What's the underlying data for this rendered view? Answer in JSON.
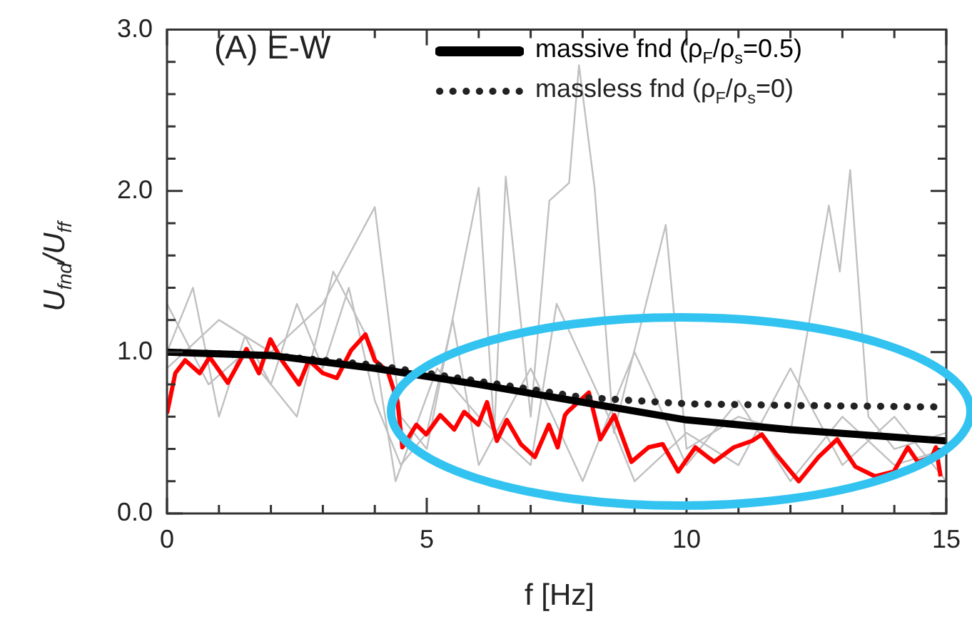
{
  "chart_data": {
    "type": "line",
    "xlabel": "f  [Hz]",
    "ylabel": "U$_{fnd}$/U$_{ff}$",
    "annotations": [
      "(A) E-W"
    ],
    "xlim": [
      0,
      15
    ],
    "xticks": [
      0,
      {
        "value": 1,
        "label": null
      },
      {
        "value": 2,
        "label": null
      },
      {
        "value": 3,
        "label": null
      },
      {
        "value": 4,
        "label": null
      },
      5,
      {
        "value": 6,
        "label": null
      },
      {
        "value": 7,
        "label": null
      },
      {
        "value": 8,
        "label": null
      },
      {
        "value": 9,
        "label": null
      },
      10,
      {
        "value": 11,
        "label": null
      },
      {
        "value": 12,
        "label": null
      },
      {
        "value": 13,
        "label": null
      },
      {
        "value": 14,
        "label": null
      },
      15
    ],
    "ylim": [
      0,
      3
    ],
    "yticks": [
      {
        "value": 0,
        "label": "0.0"
      },
      {
        "value": 0.2,
        "label": null
      },
      {
        "value": 0.4,
        "label": null
      },
      {
        "value": 0.6,
        "label": null
      },
      {
        "value": 0.8,
        "label": null
      },
      {
        "value": 1,
        "label": "1.0"
      },
      {
        "value": 1.2,
        "label": null
      },
      {
        "value": 1.4,
        "label": null
      },
      {
        "value": 1.6,
        "label": null
      },
      {
        "value": 1.8,
        "label": null
      },
      {
        "value": 2,
        "label": "2.0"
      },
      {
        "value": 2.2,
        "label": null
      },
      {
        "value": 2.4,
        "label": null
      },
      {
        "value": 2.6,
        "label": null
      },
      {
        "value": 2.8,
        "label": null
      },
      {
        "value": 3,
        "label": "3.0"
      }
    ],
    "legend": "top right",
    "marker": "none",
    "line_style": "solid",
    "series": [
      {
        "color": "#c0c0c0",
        "x": [
          0,
          1,
          2,
          3,
          4,
          4.5,
          5,
          6,
          6.3,
          6.52,
          7,
          7.36,
          7.74,
          7.93,
          8.23,
          8.6,
          9.6,
          10,
          11,
          12,
          12.74,
          12.95,
          13.15,
          13.5,
          14,
          15
        ],
        "values": [
          0.9,
          1.2,
          1.0,
          1.3,
          1.9,
          0.6,
          0.4,
          2.02,
          0.5,
          2.09,
          0.6,
          1.94,
          2.05,
          2.78,
          2.02,
          0.5,
          1.79,
          0.4,
          0.6,
          0.5,
          1.91,
          1.5,
          2.13,
          0.6,
          0.4,
          0.5
        ]
      },
      {
        "color": "#c0c0c0",
        "x": [
          0,
          0.5,
          1,
          1.5,
          2,
          2.5,
          3,
          3.5,
          4,
          4.5,
          5,
          5.5,
          6,
          7,
          8,
          9,
          10,
          11,
          12,
          13,
          14,
          15
        ],
        "values": [
          1.0,
          1.4,
          0.6,
          1.1,
          0.8,
          1.3,
          0.9,
          1.4,
          0.7,
          0.3,
          0.5,
          1.2,
          0.3,
          0.9,
          0.2,
          1.0,
          0.3,
          0.7,
          0.2,
          0.6,
          0.3,
          0.4
        ]
      },
      {
        "color": "#c0c0c0",
        "x": [
          0,
          0.8,
          1.5,
          2.5,
          3.2,
          4,
          4.4,
          5.2,
          6,
          7,
          7.5,
          8.5,
          9,
          10,
          11,
          12,
          13,
          14,
          15
        ],
        "values": [
          1.3,
          0.8,
          1.0,
          0.6,
          1.5,
          1.0,
          0.2,
          0.9,
          0.6,
          0.3,
          1.3,
          0.6,
          0.2,
          0.5,
          0.3,
          0.9,
          0.3,
          0.6,
          0.2
        ]
      },
      {
        "color": "#ff0000",
        "x": [
          0,
          0.16,
          0.35,
          0.63,
          0.82,
          1.17,
          1.53,
          1.77,
          1.99,
          2.21,
          2.54,
          2.73,
          3.0,
          3.27,
          3.54,
          3.82,
          4.0,
          4.25,
          4.44,
          4.53,
          4.8,
          4.99,
          5.26,
          5.53,
          5.72,
          5.99,
          6.16,
          6.35,
          6.54,
          6.81,
          7.08,
          7.35,
          7.52,
          7.66,
          7.71,
          8.12,
          8.34,
          8.61,
          8.94,
          9.27,
          9.54,
          9.84,
          10.17,
          10.53,
          10.91,
          11.26,
          11.45,
          11.72,
          12.16,
          12.54,
          12.9,
          13.25,
          13.63,
          13.99,
          14.26,
          14.45,
          14.72,
          14.8,
          14.89
        ],
        "values": [
          0.62,
          0.87,
          0.95,
          0.87,
          0.97,
          0.81,
          1.02,
          0.87,
          1.08,
          0.95,
          0.8,
          0.95,
          0.87,
          0.84,
          1.01,
          1.11,
          0.95,
          0.88,
          0.69,
          0.41,
          0.55,
          0.49,
          0.61,
          0.52,
          0.63,
          0.55,
          0.69,
          0.45,
          0.58,
          0.43,
          0.35,
          0.55,
          0.41,
          0.61,
          0.63,
          0.75,
          0.46,
          0.61,
          0.32,
          0.41,
          0.43,
          0.26,
          0.41,
          0.32,
          0.41,
          0.45,
          0.49,
          0.37,
          0.2,
          0.35,
          0.46,
          0.29,
          0.23,
          0.26,
          0.41,
          0.32,
          0.35,
          0.41,
          0.23
        ]
      },
      {
        "name": "massless fnd (ρ$_{F}$/ρ$_{s}$=0)",
        "color": "#222222",
        "line_style": "dotted",
        "x": [
          0,
          2,
          4,
          6,
          8,
          10,
          12,
          15
        ],
        "values": [
          1.0,
          0.98,
          0.92,
          0.82,
          0.72,
          0.68,
          0.67,
          0.66
        ]
      },
      {
        "name": "massive fnd   (ρ$_{F}$/ρ$_{s}$=0.5)",
        "color": "#000000",
        "x": [
          0,
          2,
          4,
          6,
          8,
          10,
          12,
          15
        ],
        "values": [
          1.0,
          0.98,
          0.9,
          0.8,
          0.69,
          0.58,
          0.52,
          0.45
        ]
      }
    ]
  }
}
